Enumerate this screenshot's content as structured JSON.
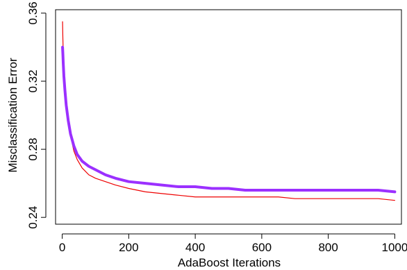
{
  "chart_data": {
    "type": "line",
    "xlabel": "AdaBoost Iterations",
    "ylabel": "Misclassification Error",
    "xlim": [
      -20,
      1020
    ],
    "ylim": [
      0.236,
      0.362
    ],
    "xticks": [
      0,
      200,
      400,
      600,
      800,
      1000
    ],
    "yticks": [
      0.24,
      0.28,
      0.32,
      0.36
    ],
    "xtick_labels": [
      "0",
      "200",
      "400",
      "600",
      "800",
      "1000"
    ],
    "ytick_labels": [
      "0.24",
      "0.28",
      "0.32",
      "0.36"
    ],
    "grid": false,
    "series": [
      {
        "color": "#ee0000",
        "width": 1.2,
        "x": [
          1,
          2,
          3,
          5,
          8,
          12,
          18,
          25,
          35,
          45,
          60,
          80,
          100,
          130,
          160,
          200,
          250,
          300,
          350,
          400,
          450,
          500,
          550,
          600,
          650,
          700,
          750,
          800,
          850,
          900,
          950,
          1000
        ],
        "y": [
          0.355,
          0.345,
          0.338,
          0.327,
          0.317,
          0.307,
          0.297,
          0.288,
          0.279,
          0.274,
          0.269,
          0.265,
          0.263,
          0.261,
          0.259,
          0.257,
          0.255,
          0.254,
          0.253,
          0.252,
          0.252,
          0.252,
          0.252,
          0.252,
          0.252,
          0.251,
          0.251,
          0.251,
          0.251,
          0.251,
          0.251,
          0.25
        ]
      },
      {
        "color": "#9b30ff",
        "width": 4,
        "x": [
          1,
          2,
          3,
          5,
          8,
          12,
          18,
          25,
          35,
          45,
          60,
          80,
          100,
          130,
          160,
          200,
          250,
          300,
          350,
          400,
          450,
          500,
          550,
          600,
          650,
          700,
          750,
          800,
          850,
          900,
          950,
          1000
        ],
        "y": [
          0.34,
          0.336,
          0.331,
          0.323,
          0.315,
          0.306,
          0.297,
          0.289,
          0.282,
          0.277,
          0.273,
          0.27,
          0.268,
          0.265,
          0.263,
          0.261,
          0.26,
          0.259,
          0.258,
          0.258,
          0.257,
          0.257,
          0.256,
          0.256,
          0.256,
          0.256,
          0.256,
          0.256,
          0.256,
          0.256,
          0.256,
          0.255
        ]
      }
    ]
  }
}
